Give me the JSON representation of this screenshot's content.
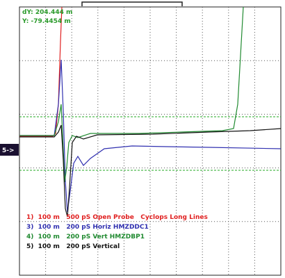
{
  "readout": {
    "dy": "dY: 204.444 m",
    "y": "Y: -79.4454 m"
  },
  "marker": "5->",
  "legend": [
    "1)  100 m   500 pS Open Probe   Cyclops Long Lines",
    "3)  100 m   200 pS Horiz HMZDDC1",
    "4)  100 m   200 pS Vert HMZDBP1",
    "5)  100 m   200 pS Vertical"
  ]
}
